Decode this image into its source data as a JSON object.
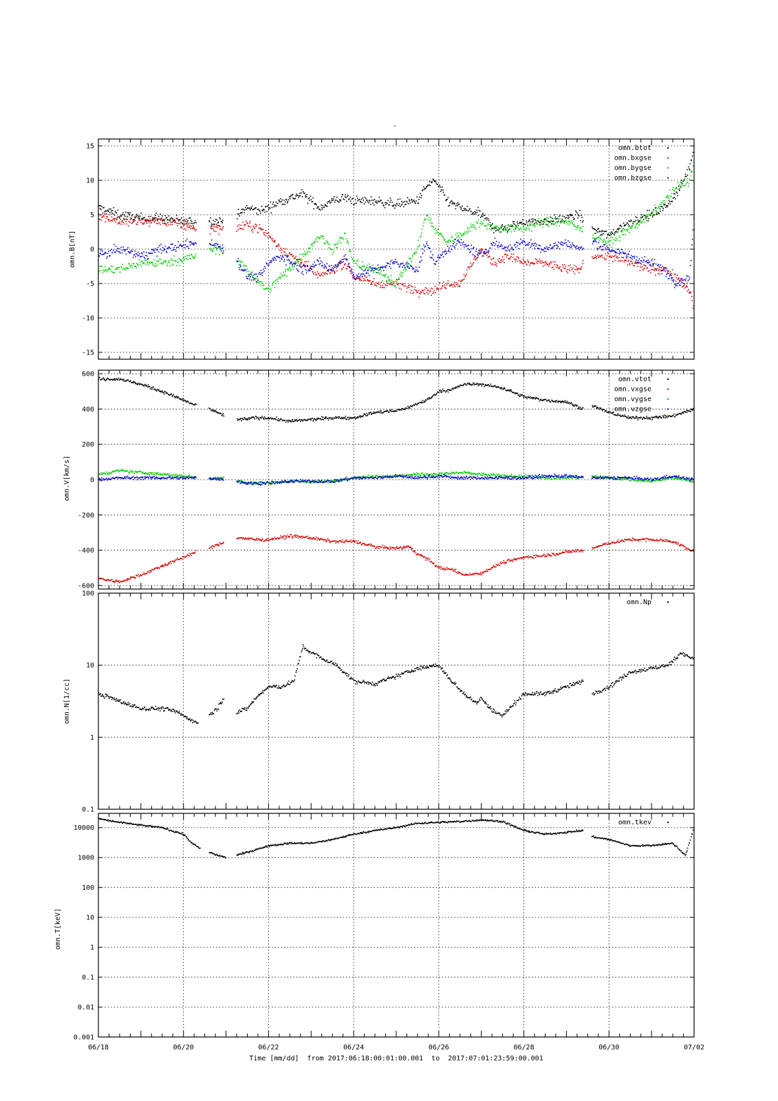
{
  "figure": {
    "top_title": "-",
    "time_label": "Time [mm/dd]  from 2017:06:18:00:01:00.001  to  2017:07:01:23:59:00.001",
    "x_ticks": [
      "06/18",
      "06/20",
      "06/22",
      "06/24",
      "06/26",
      "06/28",
      "06/30",
      "07/02"
    ]
  },
  "colors": {
    "black": "#000000",
    "red": "#d40000",
    "green": "#00cc00",
    "blue": "#0000cc"
  },
  "chart_data": [
    {
      "type": "scatter",
      "ylabel": "omn.B[nT]",
      "yscale": "linear",
      "ylim": [
        -16,
        16
      ],
      "yticks": [
        -15,
        -10,
        -5,
        0,
        5,
        10,
        15
      ],
      "ytick_labels": [
        "-15",
        "-10",
        "-5",
        "0",
        "5",
        "10",
        "15"
      ],
      "xlim": [
        0,
        14
      ],
      "grid": true,
      "legend_position": "top-right",
      "gaps": [
        [
          2.3,
          2.6
        ],
        [
          2.95,
          3.25
        ],
        [
          11.4,
          11.6
        ]
      ],
      "series": [
        {
          "name": "omn.btot",
          "color": "black",
          "x": [
            0,
            0.5,
            1,
            1.5,
            2,
            2.3,
            2.6,
            3,
            3.3,
            3.5,
            3.8,
            4,
            4.3,
            4.8,
            5.2,
            5.5,
            5.8,
            6,
            6.5,
            7,
            7.5,
            7.7,
            7.9,
            8.2,
            8.5,
            9,
            9.3,
            9.6,
            10,
            10.5,
            11,
            11.3,
            11.6,
            12,
            12.5,
            13,
            13.3,
            13.6,
            13.9,
            14
          ],
          "y": [
            6,
            5,
            4.5,
            4.5,
            4,
            4,
            4,
            4,
            5,
            6,
            5.5,
            6,
            7,
            8,
            6,
            7,
            7.5,
            7,
            7,
            6.5,
            7,
            9,
            10,
            7,
            6,
            5,
            3,
            3,
            4,
            4,
            4.5,
            5,
            3,
            2,
            4,
            5,
            6,
            8,
            12,
            15
          ]
        },
        {
          "name": "omn.bxgse",
          "color": "red",
          "x": [
            0,
            0.5,
            1,
            1.5,
            2,
            2.3,
            2.6,
            3,
            3.3,
            3.5,
            3.8,
            4,
            4.3,
            4.8,
            5.2,
            5.5,
            5.8,
            6,
            6.5,
            7,
            7.5,
            7.7,
            7.9,
            8.2,
            8.5,
            9,
            9.3,
            9.6,
            10,
            10.5,
            11,
            11.3,
            11.6,
            12,
            12.5,
            13,
            13.3,
            13.6,
            13.9,
            14
          ],
          "y": [
            5,
            4,
            4,
            4,
            3.5,
            3,
            3,
            3,
            3,
            3.5,
            3,
            2,
            0,
            -2,
            -4,
            -3,
            -2,
            -4,
            -5,
            -5,
            -6,
            -6,
            -6,
            -5,
            -5,
            0,
            -2,
            -1,
            -2,
            -2,
            -3,
            -3,
            -1,
            -1,
            -2,
            -3,
            -3,
            -4,
            -6,
            -9
          ]
        },
        {
          "name": "omn.bygse",
          "color": "green",
          "x": [
            0,
            0.5,
            1,
            1.5,
            2,
            2.3,
            2.6,
            3,
            3.3,
            3.5,
            3.8,
            4,
            4.3,
            4.8,
            5.2,
            5.5,
            5.8,
            6,
            6.5,
            7,
            7.5,
            7.7,
            7.9,
            8.2,
            8.5,
            9,
            9.3,
            9.6,
            10,
            10.5,
            11,
            11.3,
            11.6,
            12,
            12.5,
            13,
            13.3,
            13.6,
            13.9,
            14
          ],
          "y": [
            -3,
            -3,
            -2,
            -2,
            -1.5,
            -1,
            0,
            0,
            -2,
            -3,
            -5,
            -6,
            -4,
            -1,
            2,
            0,
            2,
            -2,
            -3,
            -5,
            0,
            5,
            3,
            1,
            2,
            4,
            3,
            3,
            3,
            4,
            4,
            3,
            2,
            1,
            3,
            5,
            7,
            9,
            10,
            13
          ]
        },
        {
          "name": "omn.bzgse",
          "color": "blue",
          "x": [
            0,
            0.5,
            1,
            1.5,
            2,
            2.3,
            2.6,
            3,
            3.3,
            3.5,
            3.8,
            4,
            4.3,
            4.8,
            5.2,
            5.5,
            5.8,
            6,
            6.5,
            7,
            7.5,
            7.7,
            7.9,
            8.2,
            8.5,
            9,
            9.3,
            9.6,
            10,
            10.5,
            11,
            11.3,
            11.6,
            12,
            12.5,
            13,
            13.3,
            13.6,
            13.9,
            14
          ],
          "y": [
            -1,
            0,
            -1,
            0,
            0.5,
            1,
            1,
            0,
            -2,
            -4,
            -4,
            -2,
            -1,
            -3,
            -2,
            -3,
            -1,
            -4,
            -3,
            -2,
            -3,
            1,
            -2,
            0,
            1,
            -1,
            1,
            0,
            1,
            0,
            1,
            0,
            1,
            0,
            -1,
            -2,
            -3,
            -5,
            -4,
            5
          ]
        }
      ]
    },
    {
      "type": "scatter",
      "ylabel": "omn.V[km/s]",
      "yscale": "linear",
      "ylim": [
        -620,
        620
      ],
      "yticks": [
        -600,
        -400,
        -200,
        0,
        200,
        400,
        600
      ],
      "ytick_labels": [
        "-600",
        "-400",
        "-200",
        "0",
        "200",
        "400",
        "600"
      ],
      "xlim": [
        0,
        14
      ],
      "grid": true,
      "legend_position": "top-right",
      "gaps": [
        [
          2.3,
          2.6
        ],
        [
          2.95,
          3.25
        ],
        [
          11.4,
          11.6
        ]
      ],
      "series": [
        {
          "name": "omn.vtot",
          "color": "black",
          "x": [
            0,
            0.5,
            1,
            1.5,
            2,
            2.3,
            2.6,
            3,
            3.3,
            3.7,
            4,
            4.5,
            5,
            5.5,
            6,
            6.5,
            7,
            7.3,
            7.5,
            7.8,
            8,
            8.3,
            8.6,
            9,
            9.5,
            10,
            10.5,
            11,
            11.4,
            11.6,
            12,
            12.5,
            13,
            13.5,
            14
          ],
          "y": [
            570,
            570,
            540,
            500,
            450,
            420,
            400,
            360,
            340,
            350,
            350,
            330,
            340,
            350,
            350,
            380,
            390,
            410,
            430,
            460,
            500,
            510,
            540,
            540,
            520,
            470,
            450,
            440,
            400,
            420,
            380,
            350,
            350,
            360,
            400
          ]
        },
        {
          "name": "omn.vxgse",
          "color": "red",
          "x": [
            0,
            0.5,
            1,
            1.5,
            2,
            2.3,
            2.6,
            3,
            3.3,
            3.7,
            4,
            4.5,
            5,
            5.5,
            6,
            6.5,
            7,
            7.3,
            7.5,
            7.8,
            8,
            8.3,
            8.6,
            9,
            9.5,
            10,
            10.5,
            11,
            11.4,
            11.6,
            12,
            12.5,
            13,
            13.5,
            14
          ],
          "y": [
            -560,
            -580,
            -540,
            -490,
            -440,
            -410,
            -390,
            -350,
            -330,
            -340,
            -340,
            -320,
            -330,
            -350,
            -350,
            -380,
            -390,
            -380,
            -420,
            -460,
            -500,
            -510,
            -540,
            -530,
            -470,
            -440,
            -430,
            -410,
            -400,
            -390,
            -360,
            -340,
            -340,
            -350,
            -410
          ]
        },
        {
          "name": "omn.vygse",
          "color": "green",
          "x": [
            0,
            0.5,
            1,
            1.5,
            2,
            2.5,
            3,
            3.5,
            4,
            4.5,
            5,
            5.5,
            6,
            6.5,
            7,
            7.5,
            8,
            8.5,
            9,
            9.5,
            10,
            10.5,
            11,
            11.5,
            12,
            12.5,
            13,
            13.5,
            14
          ],
          "y": [
            30,
            50,
            40,
            30,
            20,
            10,
            10,
            -20,
            -20,
            -10,
            -10,
            -10,
            10,
            20,
            20,
            30,
            30,
            40,
            30,
            20,
            20,
            10,
            10,
            20,
            10,
            0,
            -10,
            10,
            -10
          ]
        },
        {
          "name": "omn.vzgse",
          "color": "blue",
          "x": [
            0,
            0.5,
            1,
            1.5,
            2,
            2.5,
            3,
            3.5,
            4,
            4.5,
            5,
            5.5,
            6,
            6.5,
            7,
            7.5,
            8,
            8.5,
            9,
            9.5,
            10,
            10.5,
            11,
            11.5,
            12,
            12.5,
            13,
            13.5,
            14
          ],
          "y": [
            0,
            10,
            10,
            10,
            10,
            10,
            0,
            -20,
            -20,
            -10,
            -10,
            -10,
            10,
            10,
            20,
            10,
            20,
            10,
            10,
            10,
            10,
            20,
            20,
            10,
            10,
            10,
            0,
            20,
            0
          ]
        }
      ]
    },
    {
      "type": "scatter",
      "ylabel": "omn.N[1/cc]",
      "yscale": "log",
      "ylim": [
        0.1,
        100
      ],
      "yticks": [
        0.1,
        1,
        10,
        100
      ],
      "ytick_labels": [
        "0.1",
        "1",
        "10",
        "100"
      ],
      "xlim": [
        0,
        14
      ],
      "grid": true,
      "legend_position": "top-right",
      "gaps": [
        [
          2.35,
          2.6
        ],
        [
          2.95,
          3.25
        ],
        [
          11.4,
          11.6
        ]
      ],
      "series": [
        {
          "name": "omn.Np",
          "color": "black",
          "x": [
            0,
            0.3,
            0.6,
            1,
            1.5,
            1.8,
            2,
            2.2,
            2.35,
            2.6,
            2.8,
            2.95,
            3.25,
            3.5,
            3.7,
            4,
            4.3,
            4.6,
            4.8,
            5,
            5.3,
            5.6,
            6,
            6.5,
            7,
            7.5,
            8,
            8.3,
            8.6,
            8.9,
            9,
            9.2,
            9.5,
            10,
            10.5,
            11,
            11.4,
            11.6,
            12,
            12.5,
            13,
            13.4,
            13.7,
            14
          ],
          "y": [
            4,
            3.5,
            3,
            2.5,
            2.5,
            2.3,
            2,
            1.7,
            1.6,
            2,
            2.5,
            3.5,
            2.2,
            2.5,
            3.5,
            5,
            5,
            6,
            18,
            15,
            12,
            10,
            6,
            5.5,
            7,
            9,
            10,
            6,
            4,
            3,
            3.5,
            2.5,
            2,
            4,
            4,
            5,
            6,
            4,
            5,
            8,
            9,
            10,
            15,
            12
          ]
        }
      ]
    },
    {
      "type": "scatter",
      "ylabel": "omn.T[keV]",
      "yscale": "log",
      "ylim": [
        0.001,
        30000
      ],
      "yticks": [
        0.001,
        0.01,
        0.1,
        1,
        10,
        100,
        1000,
        10000
      ],
      "ytick_labels": [
        "0.001",
        "0.01",
        "0.1",
        "1",
        "10",
        "100",
        "1000",
        "10000"
      ],
      "xlim": [
        0,
        14
      ],
      "grid": true,
      "legend_position": "top-right",
      "gaps": [
        [
          2.4,
          2.6
        ],
        [
          3.0,
          3.25
        ],
        [
          11.4,
          11.6
        ]
      ],
      "series": [
        {
          "name": "omn.tkev",
          "color": "black",
          "x": [
            0,
            0.5,
            1,
            1.5,
            2,
            2.2,
            2.4,
            2.6,
            2.8,
            3,
            3.25,
            3.5,
            3.8,
            4,
            4.5,
            5,
            5.5,
            6,
            6.5,
            7,
            7.5,
            8,
            8.5,
            9,
            9.5,
            10,
            10.5,
            11,
            11.4,
            11.6,
            12,
            12.5,
            13,
            13.5,
            13.8,
            14
          ],
          "y": [
            20000,
            15000,
            12000,
            10000,
            6000,
            3000,
            2000,
            1500,
            1200,
            1000,
            1200,
            1500,
            2000,
            2500,
            3000,
            3000,
            4000,
            6000,
            8000,
            10000,
            14000,
            15000,
            16000,
            18000,
            16000,
            8000,
            6000,
            7000,
            8000,
            5000,
            4000,
            2500,
            2500,
            3000,
            1200,
            10000
          ]
        }
      ]
    }
  ]
}
